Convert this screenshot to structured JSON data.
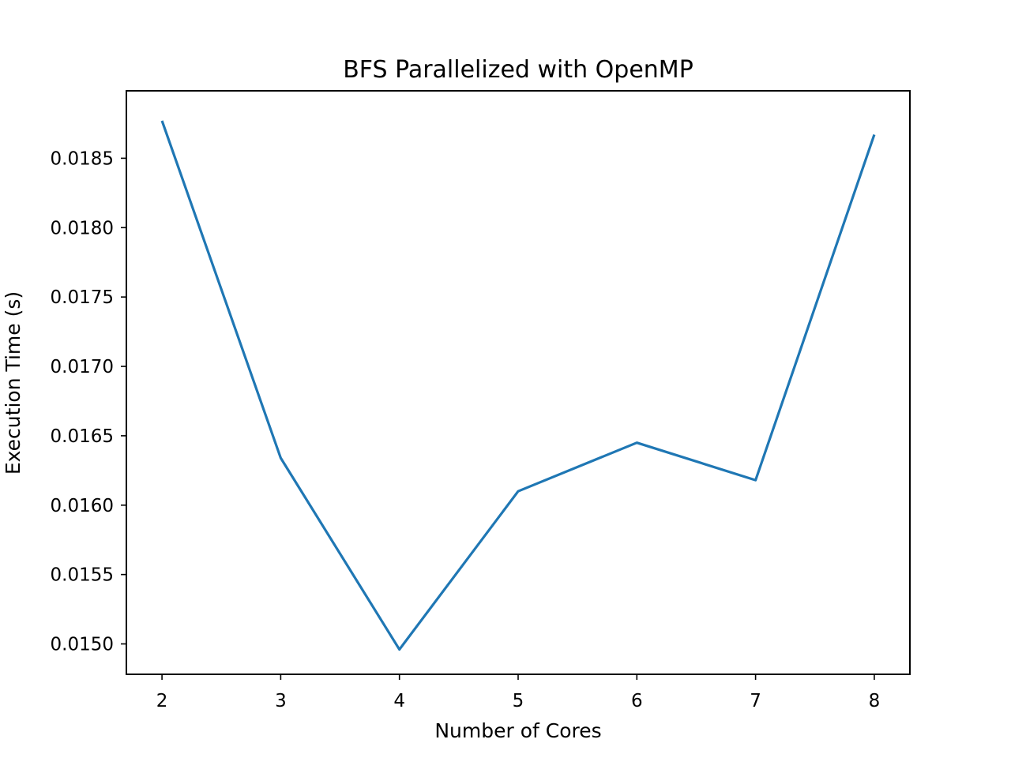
{
  "chart_data": {
    "type": "line",
    "title": "BFS Parallelized with OpenMP",
    "xlabel": "Number of Cores",
    "ylabel": "Execution Time (s)",
    "x": [
      2,
      3,
      4,
      5,
      6,
      7,
      8
    ],
    "series": [
      {
        "values": [
          0.01877,
          0.01634,
          0.01496,
          0.0161,
          0.01645,
          0.01618,
          0.01867
        ]
      }
    ],
    "xlim": [
      1.7,
      8.3
    ],
    "ylim": [
      0.014781,
      0.018986
    ],
    "xticks": [
      2,
      3,
      4,
      5,
      6,
      7,
      8
    ],
    "xtick_labels": [
      "2",
      "3",
      "4",
      "5",
      "6",
      "7",
      "8"
    ],
    "yticks": [
      0.015,
      0.0155,
      0.016,
      0.0165,
      0.017,
      0.0175,
      0.018,
      0.0185
    ],
    "ytick_labels": [
      "0.0150",
      "0.0155",
      "0.0160",
      "0.0165",
      "0.0170",
      "0.0175",
      "0.0180",
      "0.0185"
    ],
    "grid": false,
    "colors": {
      "series": "#1f77b4",
      "frame": "#000000",
      "background": "#ffffff"
    }
  }
}
